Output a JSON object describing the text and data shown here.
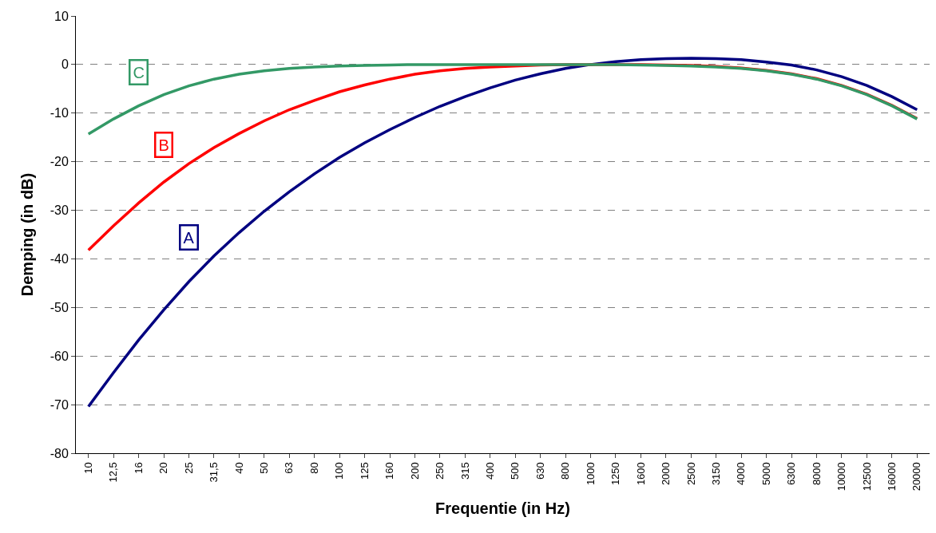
{
  "chart_data": {
    "type": "line",
    "xlabel": "Frequentie (in Hz)",
    "ylabel": "Demping (in dB)",
    "categories": [
      "10",
      "12,5",
      "16",
      "20",
      "25",
      "31,5",
      "40",
      "50",
      "63",
      "80",
      "100",
      "125",
      "160",
      "200",
      "250",
      "315",
      "400",
      "500",
      "630",
      "800",
      "1000",
      "1250",
      "1600",
      "2000",
      "2500",
      "3150",
      "4000",
      "5000",
      "6300",
      "8000",
      "10000",
      "12500",
      "16000",
      "20000"
    ],
    "series": [
      {
        "color": "#000080",
        "values": [
          -70.4,
          -63.4,
          -56.7,
          -50.5,
          -44.7,
          -39.4,
          -34.6,
          -30.2,
          -26.2,
          -22.5,
          -19.1,
          -16.1,
          -13.4,
          -10.9,
          -8.6,
          -6.6,
          -4.8,
          -3.2,
          -1.9,
          -0.8,
          0,
          0.6,
          1.0,
          1.2,
          1.3,
          1.2,
          1.0,
          0.5,
          -0.1,
          -1.1,
          -2.5,
          -4.3,
          -6.6,
          -9.3
        ]
      },
      {
        "color": "#ff0000",
        "values": [
          -38.2,
          -33.2,
          -28.5,
          -24.2,
          -20.4,
          -17.1,
          -14.2,
          -11.6,
          -9.3,
          -7.4,
          -5.6,
          -4.2,
          -3.0,
          -2.0,
          -1.3,
          -0.8,
          -0.5,
          -0.3,
          -0.1,
          0,
          0,
          0,
          0,
          -0.1,
          -0.2,
          -0.4,
          -0.7,
          -1.2,
          -1.9,
          -2.9,
          -4.3,
          -6.1,
          -8.4,
          -11.1
        ]
      },
      {
        "color": "#339966",
        "values": [
          -14.3,
          -11.2,
          -8.5,
          -6.2,
          -4.4,
          -3.0,
          -2.0,
          -1.3,
          -0.8,
          -0.5,
          -0.3,
          -0.2,
          -0.1,
          0,
          0,
          0,
          0,
          0,
          0,
          0,
          0,
          0,
          -0.1,
          -0.2,
          -0.3,
          -0.5,
          -0.8,
          -1.3,
          -2.0,
          -3.0,
          -4.4,
          -6.2,
          -8.5,
          -11.2
        ]
      }
    ],
    "annotations": [
      {
        "text": "A",
        "x": "25",
        "y": -35.5
      },
      {
        "text": "B",
        "x": "20",
        "y": -16.5
      },
      {
        "text": "C",
        "x": "16",
        "y": -1.5
      }
    ],
    "ylim": [
      -80,
      10
    ],
    "yticks": [
      -80,
      -70,
      -60,
      -50,
      -40,
      -30,
      -20,
      -10,
      0,
      10
    ],
    "grid": "y",
    "marker": "none",
    "line_style": "solid"
  }
}
